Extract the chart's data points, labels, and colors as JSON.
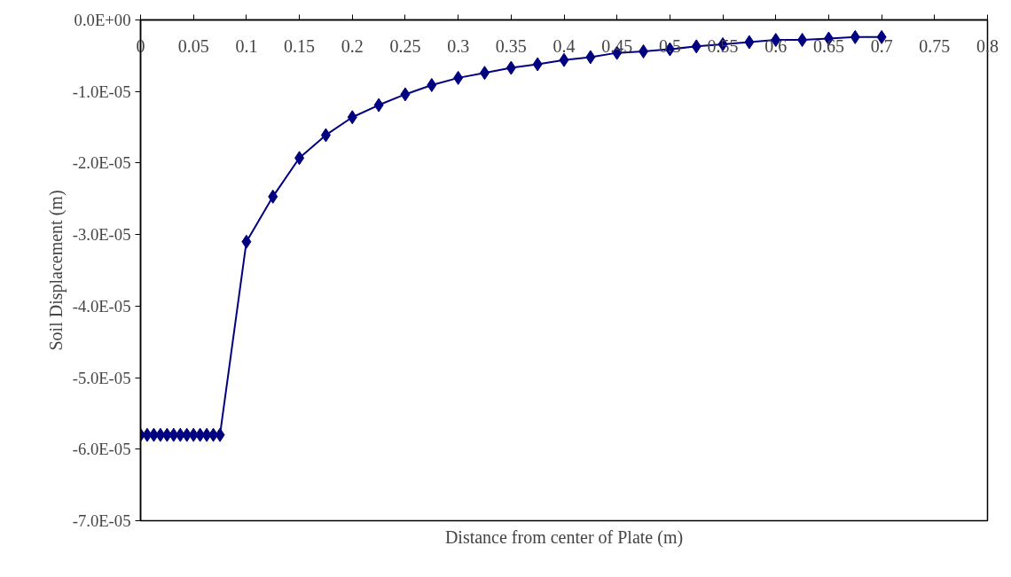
{
  "chart_data": {
    "type": "line",
    "xlabel": "Distance from center of Plate (m)",
    "ylabel": "Soil Displacement (m)",
    "x": [
      0,
      0.00625,
      0.0125,
      0.01875,
      0.025,
      0.03125,
      0.0375,
      0.04375,
      0.05,
      0.05625,
      0.0625,
      0.06875,
      0.075,
      0.1,
      0.125,
      0.15,
      0.175,
      0.2,
      0.225,
      0.25,
      0.275,
      0.3,
      0.325,
      0.35,
      0.375,
      0.4,
      0.425,
      0.45,
      0.475,
      0.5,
      0.525,
      0.55,
      0.575,
      0.6,
      0.625,
      0.65,
      0.675,
      0.7
    ],
    "series": [
      {
        "color": "#000080",
        "values": [
          -5.8e-05,
          -5.8e-05,
          -5.8e-05,
          -5.8e-05,
          -5.8e-05,
          -5.8e-05,
          -5.8e-05,
          -5.8e-05,
          -5.8e-05,
          -5.8e-05,
          -5.8e-05,
          -5.8e-05,
          -5.8e-05,
          -3.1e-05,
          -2.47e-05,
          -1.93e-05,
          -1.61e-05,
          -1.36e-05,
          -1.19e-05,
          -1.04e-05,
          -9.1e-06,
          -8.1e-06,
          -7.4e-06,
          -6.7e-06,
          -6.2e-06,
          -5.6e-06,
          -5.2e-06,
          -4.6e-06,
          -4.4e-06,
          -4.1e-06,
          -3.7e-06,
          -3.4e-06,
          -3.1e-06,
          -2.8e-06,
          -2.8e-06,
          -2.6e-06,
          -2.4e-06,
          -2.4e-06
        ]
      }
    ],
    "xlim": [
      0,
      0.8
    ],
    "xticks": [
      0,
      0.05,
      0.1,
      0.15,
      0.2,
      0.25,
      0.3,
      0.35,
      0.4,
      0.45,
      0.5,
      0.55,
      0.6,
      0.65,
      0.7,
      0.75,
      0.8
    ],
    "ylim": [
      -7e-05,
      0
    ],
    "yticks": [
      {
        "value": 0,
        "label": "0.0E+00"
      },
      {
        "value": -1e-05,
        "label": "-1.0E-05"
      },
      {
        "value": -2e-05,
        "label": "-2.0E-05"
      },
      {
        "value": -3e-05,
        "label": "-3.0E-05"
      },
      {
        "value": -4e-05,
        "label": "-4.0E-05"
      },
      {
        "value": -5e-05,
        "label": "-5.0E-05"
      },
      {
        "value": -6e-05,
        "label": "-6.0E-05"
      },
      {
        "value": -7e-05,
        "label": "-7.0E-05"
      }
    ],
    "grid": false,
    "marker": "diamond",
    "line_style": "solid"
  }
}
